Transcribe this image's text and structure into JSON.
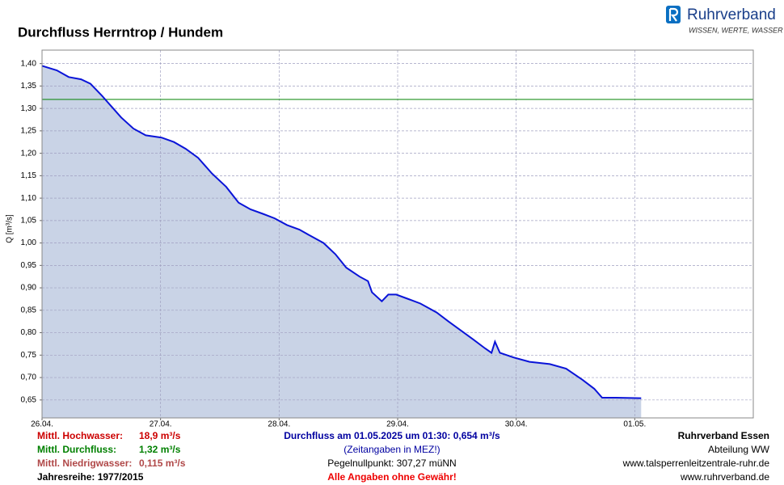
{
  "logo": {
    "name": "Ruhrverband",
    "slogan": "WISSEN, WERTE, WASSER"
  },
  "chart_data": {
    "type": "area",
    "title": "Durchfluss Herrntrop / Hundem",
    "y_label": "Q [m³/s]",
    "x": [
      0,
      3,
      5.4,
      7.9,
      9.8,
      12,
      14.4,
      16,
      18.5,
      21,
      24.2,
      26.7,
      29.1,
      31.6,
      34.4,
      37.3,
      39.8,
      42.2,
      44.7,
      47.1,
      49.6,
      52.1,
      54.5,
      57,
      59.4,
      61.6,
      64.3,
      66,
      66.8,
      68.8,
      70.1,
      71.7,
      74.2,
      76.6,
      79.9,
      82.3,
      84.8,
      87.3,
      89.7,
      91,
      91.7,
      92.7,
      95.4,
      98.7,
      102.8,
      106.1,
      109.4,
      111.8,
      113.4,
      115.9,
      121.3
    ],
    "series": [
      {
        "name": "Durchfluss",
        "color": "#0a14d8",
        "fill": "#c9d3e6",
        "values": [
          1.395,
          1.385,
          1.37,
          1.365,
          1.355,
          1.33,
          1.3,
          1.28,
          1.255,
          1.24,
          1.235,
          1.225,
          1.21,
          1.19,
          1.155,
          1.125,
          1.09,
          1.075,
          1.065,
          1.055,
          1.04,
          1.03,
          1.015,
          1.0,
          0.975,
          0.945,
          0.925,
          0.915,
          0.89,
          0.87,
          0.885,
          0.885,
          0.875,
          0.865,
          0.845,
          0.825,
          0.805,
          0.785,
          0.765,
          0.755,
          0.78,
          0.755,
          0.745,
          0.735,
          0.73,
          0.72,
          0.695,
          0.675,
          0.655,
          0.655,
          0.654
        ]
      }
    ],
    "reference_line": {
      "value": 1.32,
      "color": "#008000"
    },
    "xlim": [
      0,
      144
    ],
    "ylim": [
      0.61,
      1.43
    ],
    "xticks": [
      {
        "value": 0,
        "label": "26.04."
      },
      {
        "value": 24,
        "label": "27.04."
      },
      {
        "value": 48,
        "label": "28.04."
      },
      {
        "value": 72,
        "label": "29.04."
      },
      {
        "value": 96,
        "label": "30.04."
      },
      {
        "value": 120,
        "label": "01.05."
      }
    ],
    "yticks": [
      {
        "value": 0.65,
        "label": "0,65"
      },
      {
        "value": 0.7,
        "label": "0,70"
      },
      {
        "value": 0.75,
        "label": "0,75"
      },
      {
        "value": 0.8,
        "label": "0,80"
      },
      {
        "value": 0.85,
        "label": "0,85"
      },
      {
        "value": 0.9,
        "label": "0,90"
      },
      {
        "value": 0.95,
        "label": "0,95"
      },
      {
        "value": 1.0,
        "label": "1,00"
      },
      {
        "value": 1.05,
        "label": "1,05"
      },
      {
        "value": 1.1,
        "label": "1,10"
      },
      {
        "value": 1.15,
        "label": "1,15"
      },
      {
        "value": 1.2,
        "label": "1,20"
      },
      {
        "value": 1.25,
        "label": "1,25"
      },
      {
        "value": 1.3,
        "label": "1,30"
      },
      {
        "value": 1.35,
        "label": "1,35"
      },
      {
        "value": 1.4,
        "label": "1,40"
      }
    ],
    "grid": true
  },
  "footer": {
    "left": [
      {
        "label": "Mittl. Hochwasser:",
        "value": "18,9 m³/s",
        "color": "#cc0000"
      },
      {
        "label": "Mittl. Durchfluss:",
        "value": "1,32 m³/s",
        "color": "#008000"
      },
      {
        "label": "Mittl. Niedrigwasser:",
        "value": "0,115 m³/s",
        "color": "#b04848"
      },
      {
        "label": "Jahresreihe: 1977/2015",
        "color": "#000000"
      }
    ],
    "center": [
      {
        "text": "Durchfluss am 01.05.2025 um 01:30: 0,654 m³/s",
        "color": "#0000a0",
        "bold": true
      },
      {
        "text": "(Zeitangaben in MEZ!)",
        "color": "#0000a0",
        "bold": false
      },
      {
        "text": "Pegelnullpunkt: 307,27 müNN",
        "color": "#000000",
        "bold": false
      },
      {
        "text": "Alle Angaben ohne Gewähr!",
        "color": "#ee0000",
        "bold": true
      }
    ],
    "right": [
      {
        "text": "Ruhrverband Essen",
        "bold": true
      },
      {
        "text": "Abteilung WW",
        "bold": false
      },
      {
        "text": "www.talsperrenleitzentrale-ruhr.de",
        "bold": false
      },
      {
        "text": "www.ruhrverband.de",
        "bold": false
      }
    ]
  }
}
